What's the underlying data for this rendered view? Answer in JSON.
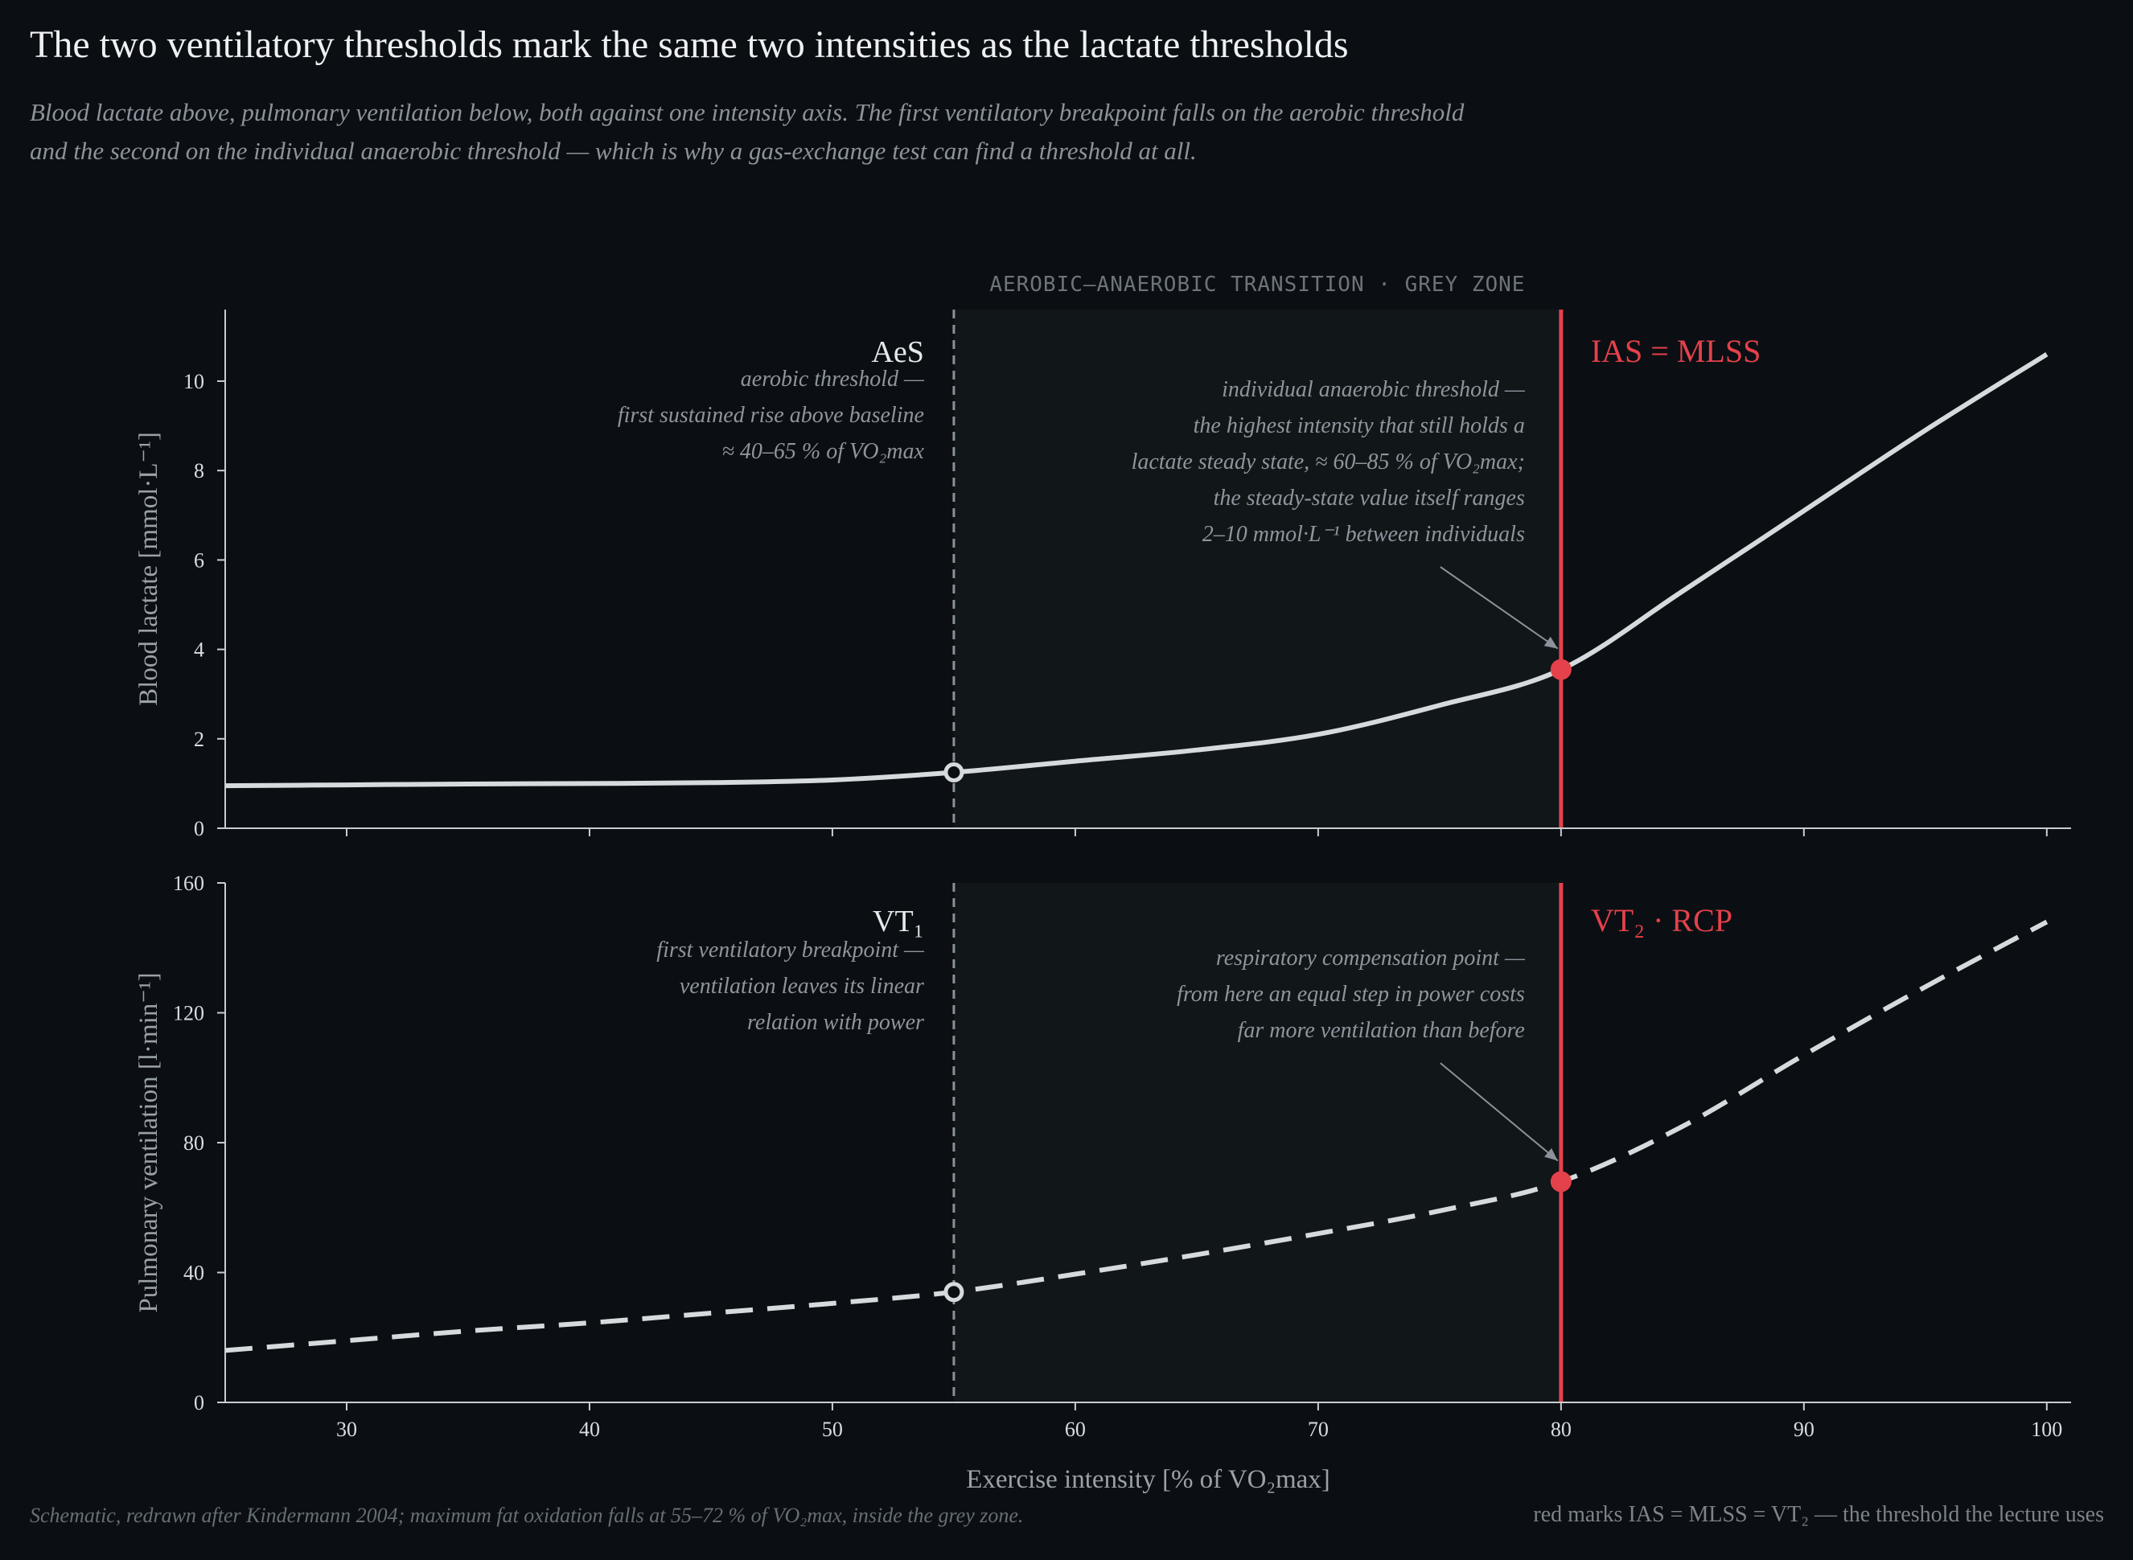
{
  "title": "The two ventilatory thresholds mark the same two intensities as the lactate thresholds",
  "subtitle": "Blood lactate above, pulmonary ventilation below, both against one intensity axis. The first ventilatory breakpoint falls on the aerobic threshold and the second on the individual anaerobic threshold — which is why a gas-exchange test can find a threshold at all.",
  "footer": {
    "source": "Schematic, redrawn after Kindermann 2004; maximum fat oxidation falls at 55–72 % of VO₂max, inside the grey zone.",
    "legend_note": "red marks IAS = MLSS = VT₂ — the threshold the lecture uses"
  },
  "colors": {
    "background": "#0b0f13",
    "grey_zone": "#111619",
    "curve": "#d7dadd",
    "accent_red": "#e5414b",
    "dashed_threshold": "#8a9198",
    "axis": "#c9cdd1"
  },
  "chart_data": [
    {
      "type": "line",
      "panel": "top",
      "ylabel": "Blood lactate  [mmol·L⁻¹]",
      "xlim": [
        25,
        101
      ],
      "ylim": [
        0,
        11.6
      ],
      "xticks": [
        30,
        40,
        50,
        60,
        70,
        80,
        90,
        100
      ],
      "yticks": [
        0,
        2,
        4,
        6,
        8,
        10
      ],
      "series": [
        {
          "style": "solid",
          "x": [
            25,
            30,
            35,
            40,
            45,
            50,
            55,
            60,
            65,
            70,
            75,
            80,
            85,
            90,
            95,
            100
          ],
          "y": [
            0.95,
            0.97,
            0.99,
            1.0,
            1.02,
            1.08,
            1.25,
            1.5,
            1.75,
            2.1,
            2.75,
            3.55,
            5.3,
            7.1,
            8.9,
            10.6
          ]
        }
      ],
      "markers": [
        {
          "x": 55,
          "y": 1.25,
          "style": "open"
        },
        {
          "x": 80,
          "y": 3.55,
          "style": "filled-red"
        }
      ],
      "band": {
        "x": [
          55,
          80
        ],
        "label": "AEROBIC–ANAEROBIC TRANSITION  ·  GREY ZONE"
      },
      "thresholds": [
        {
          "x": 55,
          "style": "dashed",
          "name": "AeS",
          "note": [
            "aerobic threshold —",
            "first sustained rise above baseline",
            "≈ 40–65 % of VO₂max"
          ]
        },
        {
          "x": 80,
          "style": "solid-red",
          "name": "IAS = MLSS",
          "note": [
            "individual anaerobic threshold —",
            "the highest intensity that still holds a",
            "lactate steady state, ≈ 60–85 % of VO₂max;",
            "the steady-state value itself ranges",
            "2–10 mmol·L⁻¹ between individuals"
          ]
        }
      ]
    },
    {
      "type": "line",
      "panel": "bottom",
      "xlabel": "Exercise intensity  [% of VO₂max]",
      "ylabel": "Pulmonary ventilation  [l·min⁻¹]",
      "xlim": [
        25,
        101
      ],
      "ylim": [
        0,
        160
      ],
      "xticks": [
        30,
        40,
        50,
        60,
        70,
        80,
        90,
        100
      ],
      "yticks": [
        0,
        40,
        80,
        120,
        160
      ],
      "series": [
        {
          "style": "dashed",
          "x": [
            25,
            30,
            35,
            40,
            45,
            50,
            55,
            60,
            65,
            70,
            75,
            80,
            85,
            90,
            95,
            100
          ],
          "y": [
            16,
            19,
            22,
            24.5,
            27.5,
            30.5,
            34,
            39.5,
            45.5,
            52,
            59,
            68,
            85,
            107,
            128,
            148
          ]
        }
      ],
      "markers": [
        {
          "x": 55,
          "y": 34,
          "style": "open"
        },
        {
          "x": 80,
          "y": 68,
          "style": "filled-red"
        }
      ],
      "band": {
        "x": [
          55,
          80
        ]
      },
      "thresholds": [
        {
          "x": 55,
          "style": "dashed",
          "name": "VT₁",
          "note": [
            "first ventilatory breakpoint —",
            "ventilation leaves its linear",
            "relation with power"
          ]
        },
        {
          "x": 80,
          "style": "solid-red",
          "name": "VT₂  ·  RCP",
          "note": [
            "respiratory compensation point —",
            "from here an equal step in power costs",
            "far more ventilation than before"
          ]
        }
      ]
    }
  ]
}
